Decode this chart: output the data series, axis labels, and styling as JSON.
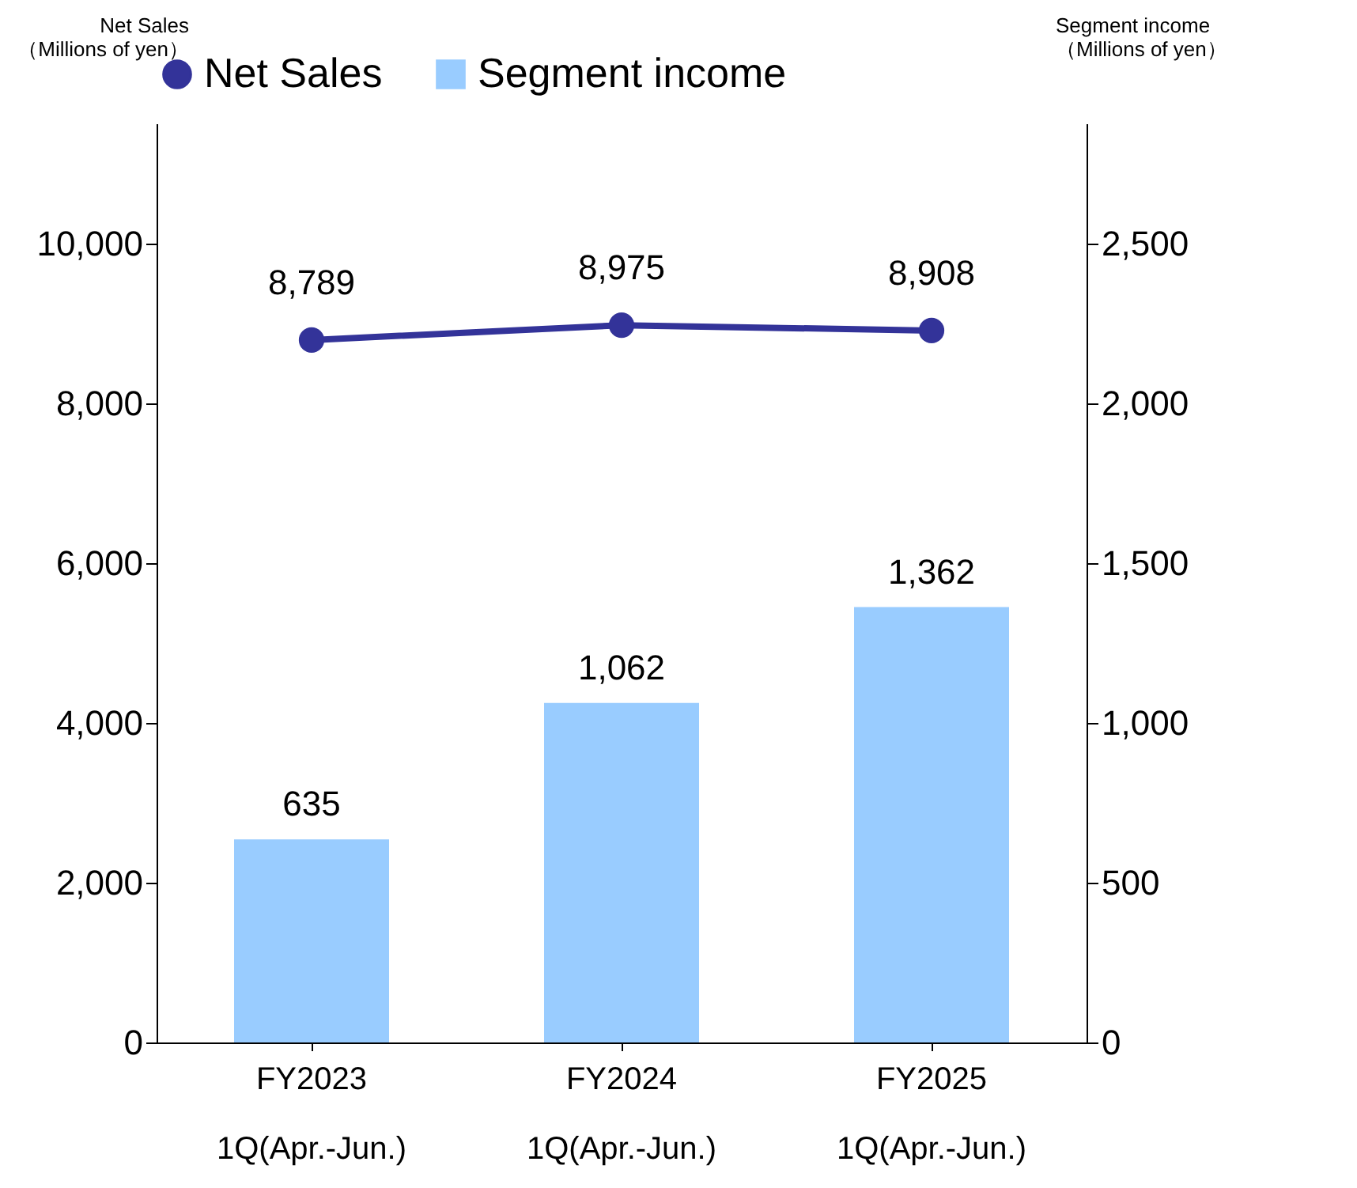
{
  "chart_data": {
    "type": "bar",
    "ylabel": "Net Sales\n（Millions of yen）",
    "y2label": "Segment income\n（Millions of yen）",
    "categories": [
      "FY2023\n1Q(Apr.-Jun.)",
      "FY2024\n1Q(Apr.-Jun.)",
      "FY2025\n1Q(Apr.-Jun.)"
    ],
    "series": [
      {
        "name": "Net Sales",
        "type": "line",
        "color": "#333399",
        "values": [
          8789,
          8975,
          8908
        ],
        "value_labels": [
          "8,789",
          "8,975",
          "8,908"
        ],
        "marker": "circle"
      },
      {
        "name": "Segment income",
        "axis": "y2",
        "color": "#99ccff",
        "values": [
          635,
          1062,
          1362
        ],
        "value_labels": [
          "635",
          "1,062",
          "1,362"
        ]
      }
    ],
    "ylim": [
      0,
      11500
    ],
    "yticks": [
      0,
      {
        "value": 2000,
        "label": "2,000"
      },
      {
        "value": 4000,
        "label": "4,000"
      },
      {
        "value": 6000,
        "label": "6,000"
      },
      {
        "value": 8000,
        "label": "8,000"
      },
      {
        "value": 10000,
        "label": "10,000"
      }
    ],
    "y2lim": [
      0,
      2875
    ],
    "y2ticks": [
      0,
      500,
      {
        "value": 1000,
        "label": "1,000"
      },
      {
        "value": 1500,
        "label": "1,500"
      },
      {
        "value": 2000,
        "label": "2,000"
      },
      {
        "value": 2500,
        "label": "2,500"
      }
    ],
    "grid": false,
    "legend": "top"
  }
}
